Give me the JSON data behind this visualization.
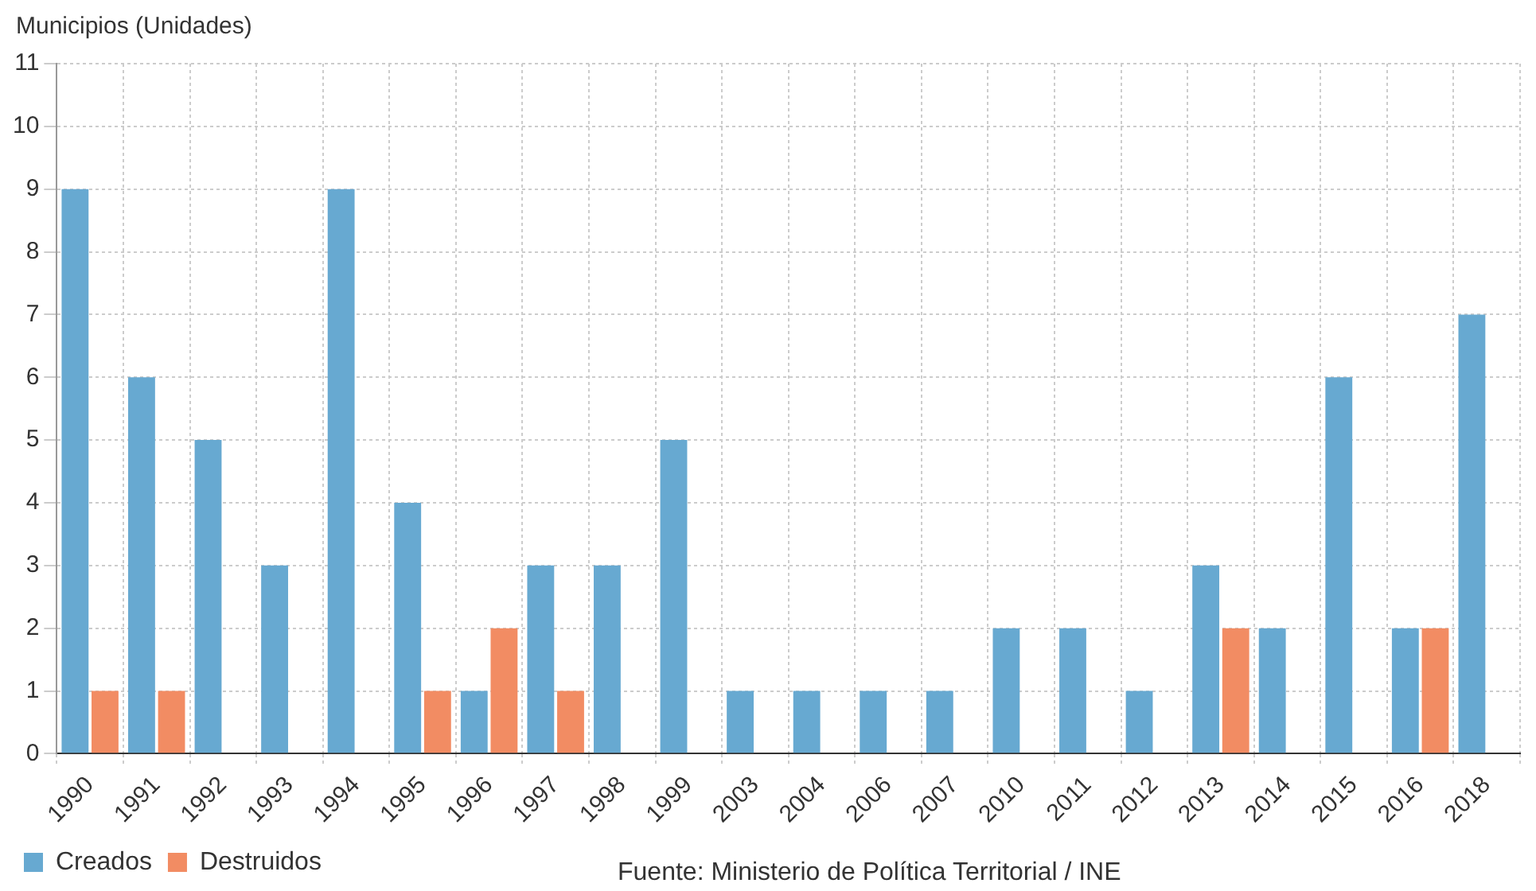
{
  "chart_data": {
    "type": "bar",
    "ylabel": "Municipios (Unidades)",
    "categories": [
      "1990",
      "1991",
      "1992",
      "1993",
      "1994",
      "1995",
      "1996",
      "1997",
      "1998",
      "1999",
      "2003",
      "2004",
      "2006",
      "2007",
      "2010",
      "2011",
      "2012",
      "2013",
      "2014",
      "2015",
      "2016",
      "2018"
    ],
    "series": [
      {
        "name": "Creados",
        "color": "#67a9d1",
        "values": [
          9,
          6,
          5,
          3,
          9,
          4,
          1,
          3,
          3,
          5,
          1,
          1,
          1,
          1,
          2,
          2,
          1,
          3,
          2,
          6,
          2,
          7
        ]
      },
      {
        "name": "Destruidos",
        "color": "#f28c63",
        "values": [
          1,
          1,
          0,
          0,
          0,
          1,
          2,
          1,
          0,
          0,
          0,
          0,
          0,
          0,
          0,
          0,
          0,
          2,
          0,
          0,
          2,
          0
        ]
      }
    ],
    "ylim": [
      0,
      11
    ],
    "yticks": [
      0,
      1,
      2,
      3,
      4,
      5,
      6,
      7,
      8,
      9,
      10,
      11
    ],
    "grid": true,
    "legend": "bottom",
    "annotations": [
      "Fuente: Ministerio de Política Territorial / INE"
    ]
  }
}
